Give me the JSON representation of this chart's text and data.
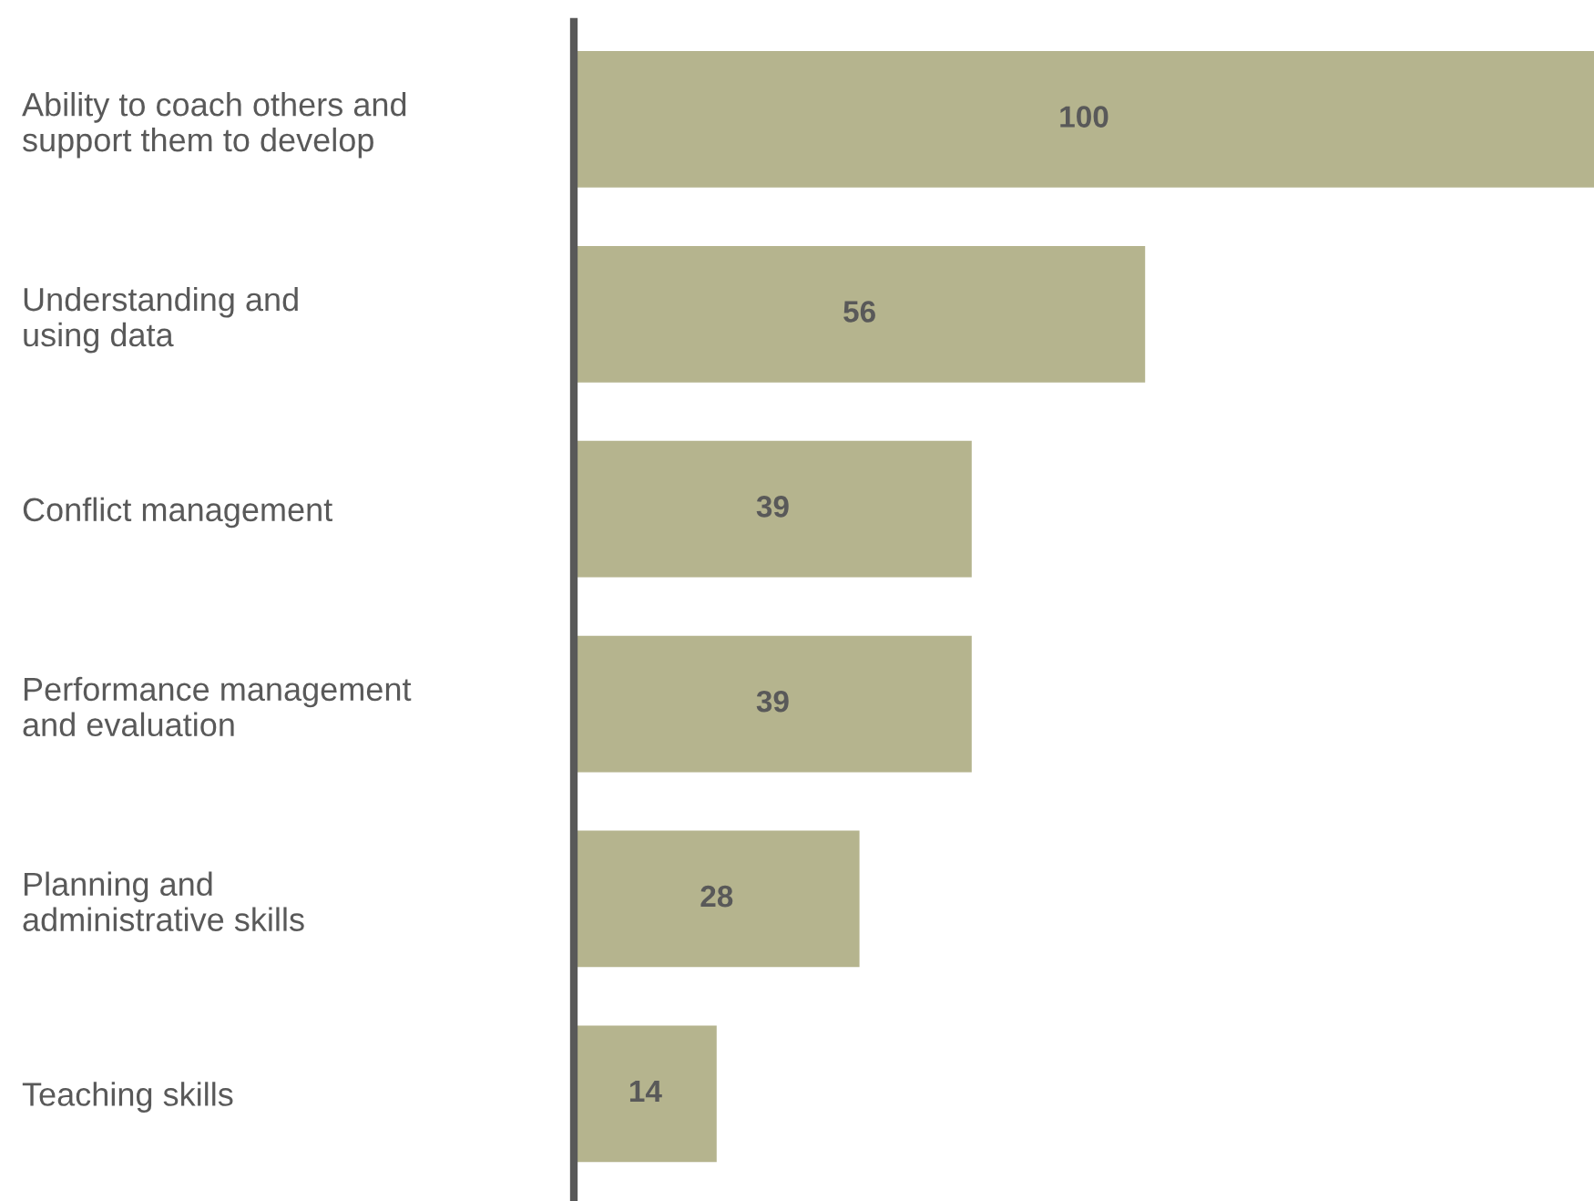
{
  "chart_data": {
    "type": "bar",
    "orientation": "horizontal",
    "tick_labels": "y",
    "categories": [
      "Ability to coach others and\nsupport them to develop",
      "Understanding and\nusing data",
      "Conflict management",
      "Performance management\nand evaluation",
      "Planning and\nadministrative skills",
      "Teaching skills"
    ],
    "values": [
      100,
      56,
      39,
      39,
      28,
      14
    ],
    "color": "#b5b48e",
    "data_labels": true,
    "grid": false,
    "legend": false
  }
}
